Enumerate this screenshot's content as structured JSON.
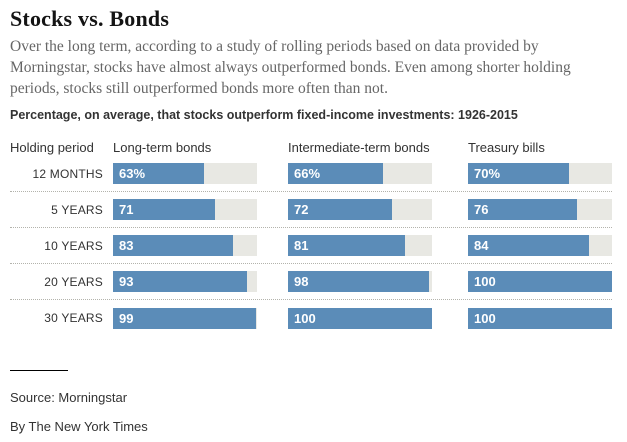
{
  "header": {
    "title": "Stocks vs. Bonds",
    "description": "Over the long term, according to a study of rolling periods based on data provided by Morningstar, stocks have almost always outperformed bonds. Even among shorter holding periods, stocks still outperformed bonds more often than not.",
    "kicker": "Percentage, on average, that stocks outperform fixed-income investments: 1926-2015"
  },
  "chart_data": {
    "type": "bar",
    "orientation": "horizontal",
    "title": "Percentage, on average, that stocks outperform fixed-income investments: 1926-2015",
    "categories": [
      "12 MONTHS",
      "5 YEARS",
      "10 YEARS",
      "20 YEARS",
      "30 YEARS"
    ],
    "column_headers": [
      "Holding period",
      "Long-term bonds",
      "Intermediate-term bonds",
      "Treasury bills"
    ],
    "series": [
      {
        "name": "Long-term bonds",
        "values": [
          63,
          71,
          83,
          93,
          99
        ],
        "labels": [
          "63%",
          "71",
          "83",
          "93",
          "99"
        ]
      },
      {
        "name": "Intermediate-term bonds",
        "values": [
          66,
          72,
          81,
          98,
          100
        ],
        "labels": [
          "66%",
          "72",
          "81",
          "98",
          "100"
        ]
      },
      {
        "name": "Treasury bills",
        "values": [
          70,
          76,
          84,
          100,
          100
        ],
        "labels": [
          "70%",
          "76",
          "84",
          "100",
          "100"
        ]
      }
    ],
    "value_range": [
      0,
      100
    ],
    "bar_color": "#5b8cb8",
    "track_color": "#e8e8e3",
    "grid": false,
    "legend_position": "none"
  },
  "footer": {
    "source": "Source: Morningstar",
    "byline": "By The New York Times"
  }
}
